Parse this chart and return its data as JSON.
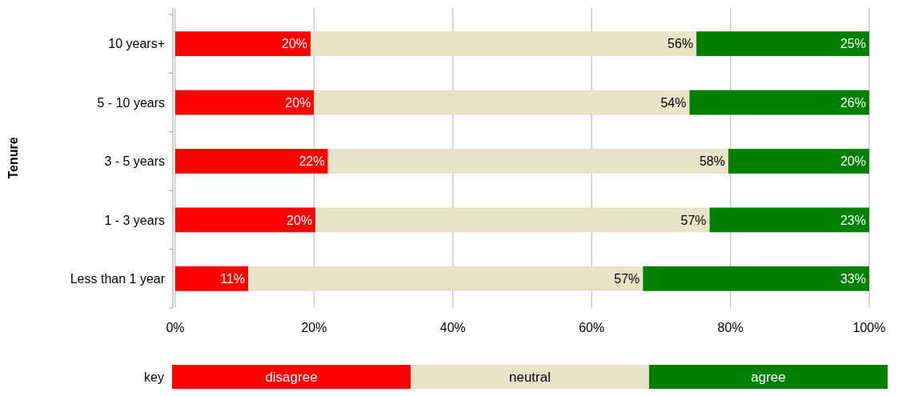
{
  "chart_data": {
    "type": "bar",
    "orientation": "horizontal",
    "stacked": true,
    "ylabel": "Tenure",
    "legend_title": "key",
    "legend": "bottom",
    "grid": "x",
    "categories": [
      "10 years+",
      "5 - 10 years",
      "3 - 5 years",
      "1 - 3 years",
      "Less than 1 year"
    ],
    "xlim": [
      0,
      100
    ],
    "xticks": [
      {
        "value": 0,
        "label": "0%"
      },
      {
        "value": 20,
        "label": "20%"
      },
      {
        "value": 40,
        "label": "40%"
      },
      {
        "value": 60,
        "label": "60%"
      },
      {
        "value": 80,
        "label": "80%"
      },
      {
        "value": 100,
        "label": "100%"
      }
    ],
    "series": [
      {
        "name": "disagree",
        "color": "#ff0000",
        "values": [
          19.5,
          20.0,
          22.0,
          20.2,
          10.5
        ],
        "value_labels": [
          "20%",
          "20%",
          "22%",
          "20%",
          "11%"
        ]
      },
      {
        "name": "neutral",
        "color": "#e8e2c6",
        "values": [
          55.6,
          54.1,
          57.7,
          56.8,
          56.9
        ],
        "value_labels": [
          "56%",
          "54%",
          "58%",
          "57%",
          "57%"
        ]
      },
      {
        "name": "agree",
        "color": "#008000",
        "values": [
          24.9,
          25.9,
          20.3,
          23.0,
          32.6
        ],
        "value_labels": [
          "25%",
          "26%",
          "20%",
          "23%",
          "33%"
        ]
      }
    ]
  }
}
